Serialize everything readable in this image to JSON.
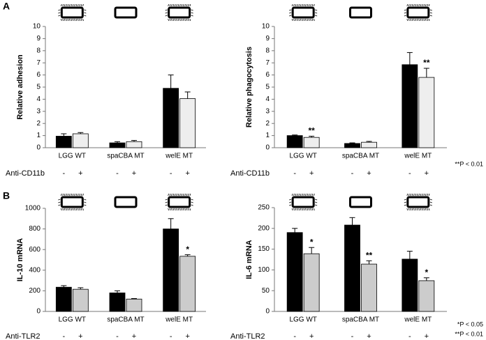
{
  "panels": [
    "A",
    "B"
  ],
  "chart_data": [
    {
      "type": "bar",
      "y_label": "Relative adhesion",
      "treatment": "Anti-CD11b",
      "categories": [
        "LGG WT",
        "spaCBA MT",
        "welE MT"
      ],
      "ylim": [
        0,
        10
      ],
      "yticks": [
        0,
        1,
        2,
        3,
        4,
        5,
        6,
        7,
        8,
        9,
        10
      ],
      "series": [
        {
          "name": "-",
          "color": "#000000",
          "values": [
            0.95,
            0.4,
            4.9
          ],
          "errors": [
            0.2,
            0.1,
            1.1
          ]
        },
        {
          "name": "+",
          "color": "#eeeeee",
          "values": [
            1.15,
            0.5,
            4.05
          ],
          "errors": [
            0.1,
            0.1,
            0.55
          ]
        }
      ]
    },
    {
      "type": "bar",
      "y_label": "Relative phagocytosis",
      "treatment": "Anti-CD11b",
      "categories": [
        "LGG WT",
        "spaCBA MT",
        "welE MT"
      ],
      "ylim": [
        0,
        10
      ],
      "yticks": [
        0,
        1,
        2,
        3,
        4,
        5,
        6,
        7,
        8,
        9,
        10
      ],
      "series": [
        {
          "name": "-",
          "color": "#000000",
          "values": [
            1.0,
            0.35,
            6.85
          ],
          "errors": [
            0.05,
            0.05,
            1.0
          ]
        },
        {
          "name": "+",
          "color": "#eeeeee",
          "values": [
            0.85,
            0.45,
            5.8
          ],
          "errors": [
            0.1,
            0.07,
            0.75
          ],
          "annotations": [
            "**",
            null,
            "**"
          ]
        }
      ],
      "footnotes": [
        "**P < 0.01"
      ]
    },
    {
      "type": "bar",
      "y_label": "IL-10 mRNA",
      "treatment": "Anti-TLR2",
      "categories": [
        "LGG WT",
        "spaCBA MT",
        "welE MT"
      ],
      "ylim": [
        0,
        1000
      ],
      "yticks": [
        0,
        200,
        400,
        600,
        800,
        1000
      ],
      "series": [
        {
          "name": "-",
          "color": "#000000",
          "values": [
            235,
            180,
            800
          ],
          "errors": [
            15,
            20,
            100
          ]
        },
        {
          "name": "+",
          "color": "#cccccc",
          "values": [
            215,
            120,
            535
          ],
          "errors": [
            15,
            5,
            15
          ],
          "annotations": [
            null,
            null,
            "*"
          ]
        }
      ]
    },
    {
      "type": "bar",
      "y_label": "IL-6 mRNA",
      "treatment": "Anti-TLR2",
      "categories": [
        "LGG WT",
        "spaCBA MT",
        "welE MT"
      ],
      "ylim": [
        0,
        250
      ],
      "yticks": [
        0,
        50,
        100,
        150,
        200,
        250
      ],
      "series": [
        {
          "name": "-",
          "color": "#000000",
          "values": [
            190,
            208,
            126
          ],
          "errors": [
            10,
            18,
            19
          ]
        },
        {
          "name": "+",
          "color": "#cccccc",
          "values": [
            139,
            114,
            74
          ],
          "errors": [
            15,
            8,
            7
          ],
          "annotations": [
            "*",
            "**",
            "*"
          ]
        }
      ],
      "footnotes": [
        "*P < 0.05",
        "**P < 0.01"
      ]
    }
  ]
}
